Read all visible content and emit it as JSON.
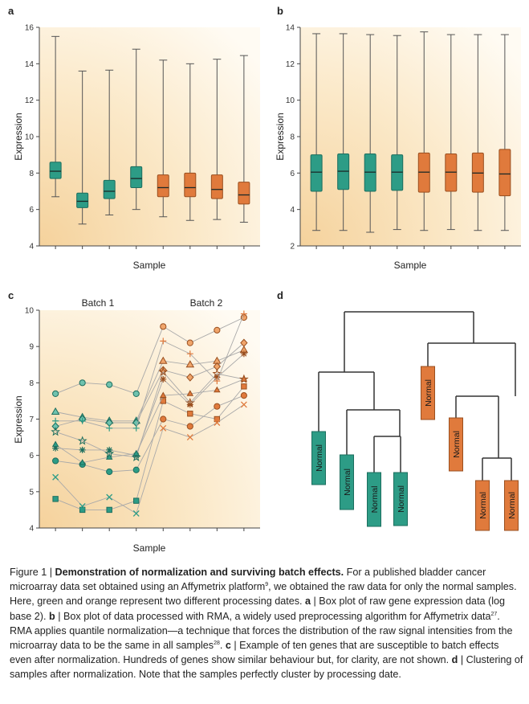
{
  "panels": {
    "a": {
      "letter": "a",
      "xlabel": "Sample",
      "ylabel": "Expression"
    },
    "b": {
      "letter": "b",
      "xlabel": "Sample",
      "ylabel": "Expression"
    },
    "c": {
      "letter": "c",
      "xlabel": "Sample",
      "ylabel": "Expression",
      "batch1": "Batch 1",
      "batch2": "Batch 2"
    },
    "d": {
      "letter": "d",
      "leaf_label": "Normal"
    }
  },
  "colors": {
    "green": "#2d9c86",
    "orange": "#e07a3c",
    "panel_bg_light": "#fef8ea",
    "panel_bg_dark": "#f6d6a4"
  },
  "chart_data": [
    {
      "panel": "a",
      "type": "box",
      "ylim": [
        4,
        16
      ],
      "yticks": [
        4,
        6,
        8,
        10,
        12,
        14,
        16
      ],
      "groups": [
        "green",
        "green",
        "green",
        "green",
        "orange",
        "orange",
        "orange",
        "orange"
      ],
      "boxes": [
        {
          "min": 6.7,
          "q1": 7.7,
          "median": 8.1,
          "q3": 8.6,
          "max": 15.5
        },
        {
          "min": 5.2,
          "q1": 6.1,
          "median": 6.45,
          "q3": 6.9,
          "max": 13.6
        },
        {
          "min": 5.7,
          "q1": 6.6,
          "median": 7.0,
          "q3": 7.6,
          "max": 13.65
        },
        {
          "min": 6.0,
          "q1": 7.2,
          "median": 7.7,
          "q3": 8.35,
          "max": 14.8
        },
        {
          "min": 5.6,
          "q1": 6.7,
          "median": 7.2,
          "q3": 7.9,
          "max": 14.2
        },
        {
          "min": 5.4,
          "q1": 6.7,
          "median": 7.2,
          "q3": 8.0,
          "max": 14.0
        },
        {
          "min": 5.45,
          "q1": 6.6,
          "median": 7.1,
          "q3": 7.9,
          "max": 14.25
        },
        {
          "min": 5.3,
          "q1": 6.3,
          "median": 6.8,
          "q3": 7.5,
          "max": 14.45
        }
      ]
    },
    {
      "panel": "b",
      "type": "box",
      "ylim": [
        2,
        14
      ],
      "yticks": [
        2,
        4,
        6,
        8,
        10,
        12,
        14
      ],
      "groups": [
        "green",
        "green",
        "green",
        "green",
        "orange",
        "orange",
        "orange",
        "orange"
      ],
      "boxes": [
        {
          "min": 2.85,
          "q1": 5.0,
          "median": 6.05,
          "q3": 7.0,
          "max": 13.65
        },
        {
          "min": 2.85,
          "q1": 5.1,
          "median": 6.1,
          "q3": 7.05,
          "max": 13.65
        },
        {
          "min": 2.75,
          "q1": 5.0,
          "median": 6.05,
          "q3": 7.05,
          "max": 13.6
        },
        {
          "min": 2.9,
          "q1": 5.05,
          "median": 6.05,
          "q3": 7.0,
          "max": 13.55
        },
        {
          "min": 2.85,
          "q1": 4.95,
          "median": 6.05,
          "q3": 7.1,
          "max": 13.75
        },
        {
          "min": 2.9,
          "q1": 5.0,
          "median": 6.05,
          "q3": 7.05,
          "max": 13.6
        },
        {
          "min": 2.85,
          "q1": 4.95,
          "median": 6.0,
          "q3": 7.1,
          "max": 13.6
        },
        {
          "min": 2.85,
          "q1": 4.75,
          "median": 5.95,
          "q3": 7.3,
          "max": 13.6
        }
      ]
    },
    {
      "panel": "c",
      "type": "line",
      "ylim": [
        4,
        10
      ],
      "yticks": [
        4,
        5,
        6,
        7,
        8,
        9,
        10
      ],
      "x": [
        1,
        2,
        3,
        4,
        5,
        6,
        7,
        8
      ],
      "groups": [
        "green",
        "green",
        "green",
        "green",
        "orange",
        "orange",
        "orange",
        "orange"
      ],
      "series": [
        {
          "marker": "circle-open",
          "values": [
            7.7,
            8.0,
            7.95,
            7.7,
            9.55,
            9.1,
            9.45,
            9.8
          ]
        },
        {
          "marker": "triangle",
          "values": [
            7.2,
            7.05,
            6.95,
            6.95,
            8.6,
            8.5,
            8.6,
            8.9
          ]
        },
        {
          "marker": "diamond",
          "values": [
            6.8,
            7.0,
            6.9,
            6.9,
            8.35,
            8.15,
            8.45,
            9.1
          ]
        },
        {
          "marker": "star",
          "values": [
            6.65,
            6.4,
            6.05,
            5.95,
            8.3,
            7.45,
            8.25,
            8.1
          ]
        },
        {
          "marker": "asterisk",
          "values": [
            6.2,
            6.15,
            6.15,
            6.0,
            8.1,
            7.4,
            8.15,
            8.8
          ]
        },
        {
          "marker": "plus",
          "values": [
            6.95,
            6.95,
            6.75,
            6.75,
            9.15,
            8.8,
            8.05,
            9.9
          ]
        },
        {
          "marker": "circle",
          "values": [
            5.85,
            5.75,
            5.55,
            5.6,
            7.0,
            6.8,
            7.35,
            7.65
          ]
        },
        {
          "marker": "square",
          "values": [
            4.8,
            4.5,
            4.5,
            4.75,
            7.5,
            7.15,
            7.0,
            7.9
          ]
        },
        {
          "marker": "x",
          "values": [
            5.4,
            4.6,
            4.85,
            4.4,
            6.75,
            6.5,
            6.9,
            7.4
          ]
        },
        {
          "marker": "triangle-small",
          "values": [
            6.3,
            5.8,
            5.95,
            6.05,
            7.65,
            7.7,
            7.8,
            8.1
          ]
        }
      ]
    }
  ],
  "caption": {
    "lead": "Figure 1 | ",
    "title": "Demonstration of normalization and surviving batch effects.",
    "t1": " For a published bladder cancer microarray data set obtained using an Affymetrix platform",
    "r1": "9",
    "t2": ", we obtained the raw data for only the normal samples. Here, green and orange represent two different processing dates. ",
    "la": "a",
    "t3": " | Box plot of raw gene expression data (log base 2). ",
    "lb": "b",
    "t4": " | Box plot of data processed with RMA, a widely used preprocessing algorithm for Affymetrix data",
    "r2": "27",
    "t5": ". RMA applies quantile normalization—a technique that forces the distribution of the raw signal intensities from the microarray data to be the same in all samples",
    "r3": "28",
    "t6": ". ",
    "lc": "c",
    "t7": " | Example of ten genes that are susceptible to batch effects even after normalization. Hundreds of genes show similar behaviour but, for clarity, are not shown. ",
    "ld": "d",
    "t8": " | Clustering of samples after normalization. Note that the samples perfectly cluster by processing date."
  }
}
